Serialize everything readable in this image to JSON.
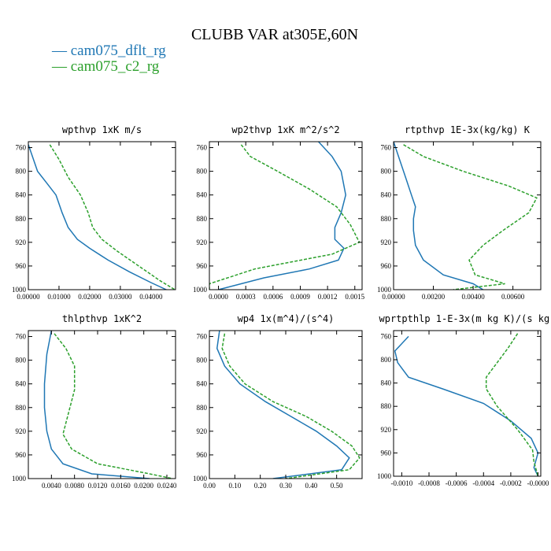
{
  "title": "CLUBB VAR at305E,60N",
  "legend": [
    {
      "label": "— cam075_dflt_rg",
      "color": "#1f77b4"
    },
    {
      "label": "— cam075_c2_rg",
      "color": "#2ca02c"
    }
  ],
  "chart_data": [
    {
      "type": "line",
      "title": "wpthvp   1xK m/s",
      "ylim": [
        1000,
        750
      ],
      "xlim": [
        0,
        0.048
      ],
      "xticks": [
        0,
        0.01,
        0.02,
        0.03,
        0.04
      ],
      "xtick_labels": [
        "0.00000",
        "0.01000",
        "0.02000",
        "0.03000",
        "0.04000"
      ],
      "yticks": [
        760,
        800,
        840,
        880,
        920,
        960,
        1000
      ],
      "ytick_labels": [
        "760",
        "800",
        "840",
        "880",
        "920",
        "960",
        "1000"
      ],
      "series": [
        {
          "name": "cam075_dflt_rg",
          "color": "#1f77b4",
          "dashed": false,
          "points": [
            [
              0.0,
              755
            ],
            [
              0.001,
              770
            ],
            [
              0.003,
              800
            ],
            [
              0.006,
              820
            ],
            [
              0.009,
              840
            ],
            [
              0.011,
              870
            ],
            [
              0.013,
              895
            ],
            [
              0.016,
              915
            ],
            [
              0.02,
              930
            ],
            [
              0.026,
              950
            ],
            [
              0.033,
              970
            ],
            [
              0.04,
              988
            ],
            [
              0.045,
              1000
            ]
          ]
        },
        {
          "name": "cam075_c2_rg",
          "color": "#2ca02c",
          "dashed": true,
          "points": [
            [
              0.007,
              755
            ],
            [
              0.01,
              780
            ],
            [
              0.013,
              810
            ],
            [
              0.017,
              840
            ],
            [
              0.0195,
              870
            ],
            [
              0.021,
              895
            ],
            [
              0.024,
              915
            ],
            [
              0.029,
              935
            ],
            [
              0.036,
              960
            ],
            [
              0.043,
              985
            ],
            [
              0.0478,
              1000
            ]
          ]
        }
      ]
    },
    {
      "type": "line",
      "title": "wp2thvp   1xK m^2/s^2",
      "ylim": [
        1000,
        750
      ],
      "xlim": [
        -0.0001,
        0.00158
      ],
      "xticks": [
        0,
        0.0003,
        0.0006,
        0.0009,
        0.0012,
        0.0015
      ],
      "xtick_labels": [
        "0.0000",
        "0.0003",
        "0.0006",
        "0.0009",
        "0.0012",
        "0.0015"
      ],
      "yticks": [
        760,
        800,
        840,
        880,
        920,
        960,
        1000
      ],
      "ytick_labels": [
        "760",
        "800",
        "840",
        "880",
        "920",
        "960",
        "1000"
      ],
      "series": [
        {
          "name": "cam075_dflt_rg",
          "color": "#1f77b4",
          "dashed": false,
          "points": [
            [
              0.0011,
              750
            ],
            [
              0.00125,
              775
            ],
            [
              0.00135,
              800
            ],
            [
              0.0014,
              840
            ],
            [
              0.00135,
              870
            ],
            [
              0.00128,
              895
            ],
            [
              0.00128,
              915
            ],
            [
              0.00138,
              930
            ],
            [
              0.00132,
              950
            ],
            [
              0.001,
              965
            ],
            [
              0.0005,
              980
            ],
            [
              0.0,
              1000
            ]
          ]
        },
        {
          "name": "cam075_c2_rg",
          "color": "#2ca02c",
          "dashed": true,
          "points": [
            [
              0.00025,
              755
            ],
            [
              0.00035,
              775
            ],
            [
              0.00065,
              800
            ],
            [
              0.001,
              830
            ],
            [
              0.0013,
              860
            ],
            [
              0.00145,
              890
            ],
            [
              0.00155,
              920
            ],
            [
              0.00125,
              940
            ],
            [
              0.0004,
              965
            ],
            [
              -0.0001,
              990
            ],
            [
              -0.0001,
              1000
            ]
          ]
        }
      ]
    },
    {
      "type": "line",
      "title": "rtpthvp   1E-3x(kg/kg) K",
      "ylim": [
        1000,
        750
      ],
      "xlim": [
        0,
        0.0074
      ],
      "xticks": [
        0,
        0.002,
        0.004,
        0.006
      ],
      "xtick_labels": [
        "0.00000",
        "0.00200",
        "0.00400",
        "0.00600"
      ],
      "yticks": [
        760,
        800,
        840,
        880,
        920,
        960,
        1000
      ],
      "ytick_labels": [
        "760",
        "800",
        "840",
        "880",
        "920",
        "960",
        "1000"
      ],
      "series": [
        {
          "name": "cam075_dflt_rg",
          "color": "#1f77b4",
          "dashed": false,
          "points": [
            [
              0.0,
              750
            ],
            [
              0.0003,
              780
            ],
            [
              0.0006,
              810
            ],
            [
              0.0009,
              840
            ],
            [
              0.0011,
              860
            ],
            [
              0.001,
              880
            ],
            [
              0.001,
              900
            ],
            [
              0.0011,
              925
            ],
            [
              0.0015,
              950
            ],
            [
              0.0025,
              975
            ],
            [
              0.004,
              990
            ],
            [
              0.0045,
              1000
            ]
          ]
        },
        {
          "name": "cam075_c2_rg",
          "color": "#2ca02c",
          "dashed": true,
          "points": [
            [
              0.0005,
              755
            ],
            [
              0.0015,
              775
            ],
            [
              0.0035,
              800
            ],
            [
              0.0058,
              825
            ],
            [
              0.0072,
              845
            ],
            [
              0.0068,
              870
            ],
            [
              0.0055,
              900
            ],
            [
              0.0045,
              925
            ],
            [
              0.0038,
              950
            ],
            [
              0.0041,
              975
            ],
            [
              0.0056,
              990
            ],
            [
              0.003,
              1000
            ]
          ]
        }
      ]
    },
    {
      "type": "line",
      "title": "thlpthvp   1xK^2",
      "ylim": [
        1000,
        750
      ],
      "xlim": [
        0,
        0.0255
      ],
      "xticks": [
        0.004,
        0.008,
        0.012,
        0.016,
        0.02,
        0.024
      ],
      "xtick_labels": [
        "0.0040",
        "0.0080",
        "0.0120",
        "0.0160",
        "0.0200",
        "0.0240"
      ],
      "yticks": [
        760,
        800,
        840,
        880,
        920,
        960,
        1000
      ],
      "ytick_labels": [
        "760",
        "800",
        "840",
        "880",
        "920",
        "960",
        "1000"
      ],
      "series": [
        {
          "name": "cam075_dflt_rg",
          "color": "#1f77b4",
          "dashed": false,
          "points": [
            [
              0.004,
              750
            ],
            [
              0.0032,
              790
            ],
            [
              0.0028,
              840
            ],
            [
              0.0028,
              880
            ],
            [
              0.0032,
              920
            ],
            [
              0.004,
              950
            ],
            [
              0.006,
              975
            ],
            [
              0.011,
              992
            ],
            [
              0.021,
              1000
            ]
          ]
        },
        {
          "name": "cam075_c2_rg",
          "color": "#2ca02c",
          "dashed": true,
          "points": [
            [
              0.0045,
              755
            ],
            [
              0.0065,
              780
            ],
            [
              0.008,
              810
            ],
            [
              0.008,
              850
            ],
            [
              0.0068,
              895
            ],
            [
              0.006,
              925
            ],
            [
              0.0075,
              950
            ],
            [
              0.012,
              975
            ],
            [
              0.02,
              990
            ],
            [
              0.025,
              1000
            ]
          ]
        }
      ]
    },
    {
      "type": "line",
      "title": "wp4   1x(m^4)/(s^4)",
      "ylim": [
        1000,
        750
      ],
      "xlim": [
        0,
        0.6
      ],
      "xticks": [
        0,
        0.1,
        0.2,
        0.3,
        0.4,
        0.5
      ],
      "xtick_labels": [
        "0.00",
        "0.10",
        "0.20",
        "0.30",
        "0.40",
        "0.50"
      ],
      "yticks": [
        760,
        800,
        840,
        880,
        920,
        960,
        1000
      ],
      "ytick_labels": [
        "760",
        "800",
        "840",
        "880",
        "920",
        "960",
        "1000"
      ],
      "series": [
        {
          "name": "cam075_dflt_rg",
          "color": "#1f77b4",
          "dashed": false,
          "points": [
            [
              0.04,
              750
            ],
            [
              0.03,
              780
            ],
            [
              0.06,
              810
            ],
            [
              0.12,
              840
            ],
            [
              0.22,
              870
            ],
            [
              0.32,
              895
            ],
            [
              0.42,
              920
            ],
            [
              0.5,
              945
            ],
            [
              0.55,
              965
            ],
            [
              0.52,
              985
            ],
            [
              0.25,
              1000
            ]
          ]
        },
        {
          "name": "cam075_c2_rg",
          "color": "#2ca02c",
          "dashed": true,
          "points": [
            [
              0.06,
              755
            ],
            [
              0.05,
              780
            ],
            [
              0.08,
              810
            ],
            [
              0.14,
              840
            ],
            [
              0.25,
              870
            ],
            [
              0.38,
              895
            ],
            [
              0.48,
              920
            ],
            [
              0.56,
              945
            ],
            [
              0.59,
              965
            ],
            [
              0.55,
              985
            ],
            [
              0.3,
              1000
            ]
          ]
        }
      ]
    },
    {
      "type": "line",
      "title": "wprtpthlp   1-E-3x(m kg K)/(s kg)",
      "ylim": [
        1000,
        750
      ],
      "xlim": [
        -0.00106,
        2e-05
      ],
      "xticks": [
        -0.001,
        -0.0008,
        -0.0006,
        -0.0004,
        -0.0002,
        0
      ],
      "xtick_labels": [
        "-0.0010",
        "-0.0008",
        "-0.0006",
        "-0.0004",
        "-0.0002",
        "-0.0000"
      ],
      "yticks": [
        760,
        800,
        840,
        880,
        920,
        960,
        1000
      ],
      "ytick_labels": [
        "760",
        "800",
        "840",
        "880",
        "920",
        "960",
        "1000"
      ],
      "series": [
        {
          "name": "cam075_dflt_rg",
          "color": "#1f77b4",
          "dashed": false,
          "points": [
            [
              -0.00095,
              760
            ],
            [
              -0.00105,
              785
            ],
            [
              -0.00103,
              805
            ],
            [
              -0.00095,
              830
            ],
            [
              -0.0007,
              850
            ],
            [
              -0.0004,
              875
            ],
            [
              -0.0002,
              905
            ],
            [
              -5e-05,
              935
            ],
            [
              0.0,
              960
            ],
            [
              -3e-05,
              985
            ],
            [
              0.0,
              1000
            ]
          ]
        },
        {
          "name": "cam075_c2_rg",
          "color": "#2ca02c",
          "dashed": true,
          "points": [
            [
              -0.00015,
              755
            ],
            [
              -0.00022,
              780
            ],
            [
              -0.0003,
              805
            ],
            [
              -0.00038,
              830
            ],
            [
              -0.00038,
              850
            ],
            [
              -0.0003,
              880
            ],
            [
              -0.00015,
              920
            ],
            [
              -4e-05,
              955
            ],
            [
              -3e-05,
              975
            ],
            [
              0.0,
              1000
            ]
          ]
        }
      ]
    }
  ]
}
